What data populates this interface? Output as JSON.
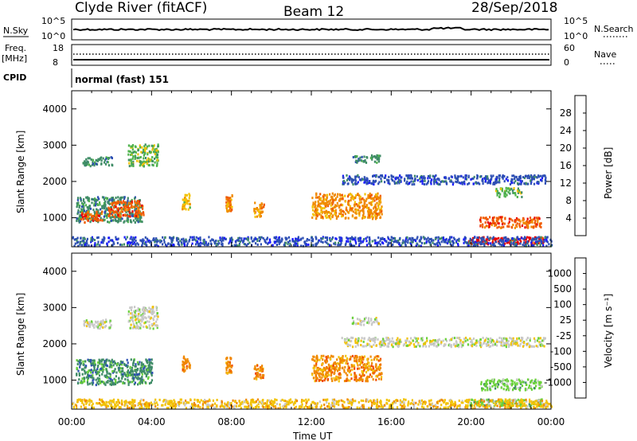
{
  "header": {
    "station": "Clyde River (fitACF)",
    "beam": "Beam 12",
    "date": "28/Sep/2018"
  },
  "strips": {
    "nsky_label": "N.Sky",
    "nsky_ticks": [
      "10^5",
      "10^0"
    ],
    "nsearch_label": "N.Search",
    "nsearch_ticks": [
      "10^5",
      "10^0"
    ],
    "freq_label": "Freq.",
    "freq_unit": "[MHz]",
    "freq_ticks": [
      "18",
      "8"
    ],
    "nave_label": "Nave",
    "nave_ticks": [
      "60",
      "0"
    ],
    "cpid_label": "CPID",
    "cpid_value": "normal (fast) 151"
  },
  "colors": {
    "power_scale": [
      "#1a1aff",
      "#2d4fb4",
      "#3f8c66",
      "#4fb34d",
      "#f2c200",
      "#f08a00",
      "#f05a00",
      "#e80000"
    ],
    "velocity_scale": [
      "#e80000",
      "#f04a00",
      "#f08a00",
      "#f2c200",
      "#c8c8c8",
      "#6ad23a",
      "#3f8c66",
      "#2d4fb4",
      "#1a3fd6"
    ]
  },
  "chart_data": [
    {
      "type": "heatmap",
      "name": "power",
      "xlabel": "",
      "ylabel": "Slant Range [km]",
      "y_ticks": [
        "1000",
        "2000",
        "3000",
        "4000"
      ],
      "ylim": [
        200,
        4500
      ],
      "colorbar_label": "Power [dB]",
      "colorbar_ticks": [
        "4",
        "8",
        "12",
        "16",
        "20",
        "24",
        "28"
      ],
      "colorbar_range": [
        0,
        32
      ],
      "echo_regions_hours_km_value": [
        [
          0.2,
          3.5,
          900,
          1600,
          9
        ],
        [
          0.4,
          1.5,
          900,
          1200,
          26
        ],
        [
          1.8,
          3.6,
          1050,
          1500,
          24
        ],
        [
          0.5,
          2.0,
          2450,
          2700,
          10
        ],
        [
          2.8,
          4.3,
          2450,
          3050,
          14
        ],
        [
          5.5,
          5.9,
          1250,
          1700,
          18
        ],
        [
          7.7,
          8.0,
          1200,
          1650,
          20
        ],
        [
          9.1,
          9.6,
          1050,
          1450,
          22
        ],
        [
          12.0,
          15.5,
          1000,
          1700,
          20
        ],
        [
          14.0,
          15.4,
          2550,
          2750,
          8
        ],
        [
          13.5,
          23.7,
          1950,
          2200,
          7
        ],
        [
          21.2,
          22.5,
          1600,
          1850,
          13
        ],
        [
          20.4,
          23.5,
          750,
          1050,
          26
        ],
        [
          19.8,
          23.6,
          300,
          500,
          28
        ],
        [
          0.0,
          24.0,
          250,
          500,
          7
        ]
      ]
    },
    {
      "type": "heatmap",
      "name": "velocity",
      "xlabel": "Time UT",
      "ylabel": "Slant Range [km]",
      "x_ticks": [
        "00:00",
        "04:00",
        "08:00",
        "12:00",
        "16:00",
        "20:00",
        "00:00"
      ],
      "xlim_hours": [
        0,
        24
      ],
      "y_ticks": [
        "1000",
        "2000",
        "3000",
        "4000"
      ],
      "ylim": [
        200,
        4500
      ],
      "colorbar_label": "Velocity [m s⁻¹]",
      "colorbar_ticks": [
        "1000",
        "500",
        "100",
        "25",
        "-25",
        "-100",
        "-500",
        "-1000"
      ],
      "echo_regions_hours_km_value": [
        [
          0.2,
          4.0,
          900,
          1600,
          150
        ],
        [
          0.5,
          2.0,
          2450,
          2700,
          0
        ],
        [
          2.8,
          4.3,
          2450,
          3050,
          0
        ],
        [
          5.5,
          5.9,
          1250,
          1700,
          -200
        ],
        [
          7.7,
          8.0,
          1200,
          1650,
          -400
        ],
        [
          9.1,
          9.6,
          1050,
          1450,
          -300
        ],
        [
          12.0,
          15.5,
          1000,
          1700,
          -200
        ],
        [
          14.0,
          15.4,
          2550,
          2750,
          0
        ],
        [
          13.5,
          23.7,
          1950,
          2200,
          0
        ],
        [
          20.4,
          23.5,
          750,
          1050,
          60
        ],
        [
          19.8,
          23.6,
          300,
          500,
          50
        ],
        [
          0.0,
          24.0,
          250,
          500,
          -30
        ]
      ]
    }
  ]
}
